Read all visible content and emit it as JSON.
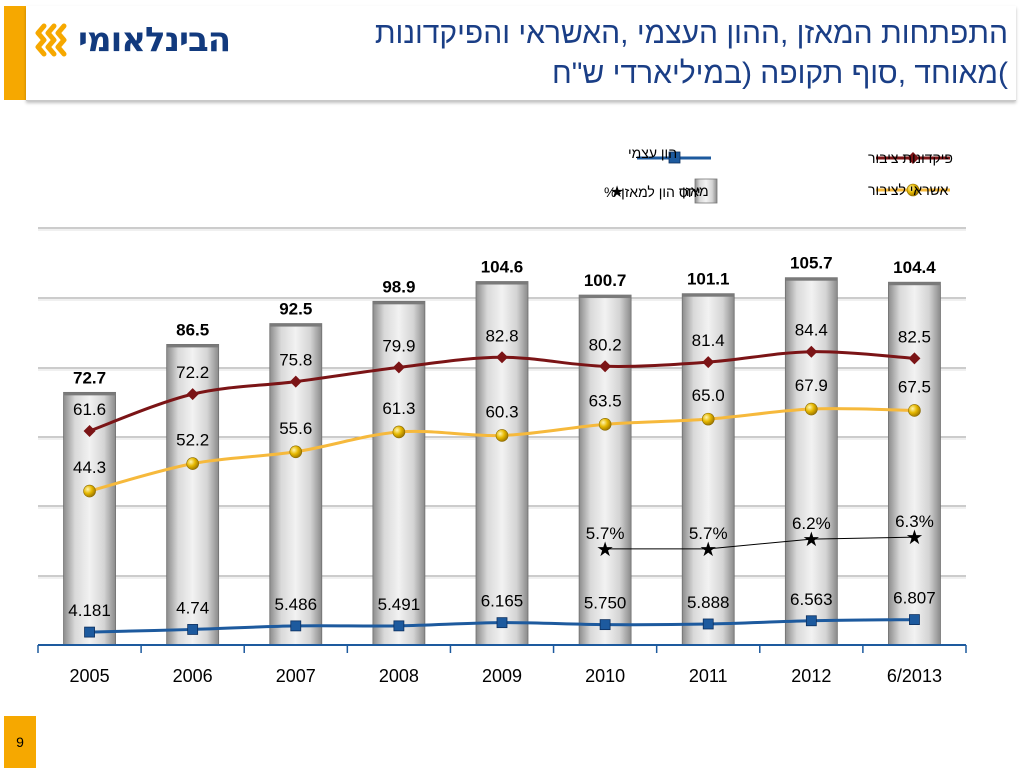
{
  "header": {
    "logo_text": "הבינלאומי",
    "title": "התפתחות המאזן, ההון העצמי, האשראי והפיקדונות מאוחד, סוף תקופה (במיליארדי ש\"ח)",
    "title_line1": "התפתחות המאזן ,ההון העצמי ,האשראי והפיקדונות",
    "title_line2": ")מאוחד ,סוף תקופה (במיליארדי ש\"ח"
  },
  "legend": {
    "deposits": "פיקדונות ציבור",
    "equity": "הון עצמי",
    "credit": "אשראי לציבור",
    "balance": "מאזן",
    "ratio": "יחס הון למאזן-%"
  },
  "page_number": "9",
  "colors": {
    "deposits": "#7b1416",
    "credit": "#f6b93c",
    "equity": "#1d5a9e",
    "ratio": "#000000",
    "bar_fill": "#c9c9c9",
    "accent": "#f6a800",
    "title": "#1a3e86"
  },
  "chart_data": {
    "type": "bar",
    "categories": [
      "2005",
      "2006",
      "2007",
      "2008",
      "2009",
      "2010",
      "2011",
      "2012",
      "6/2013"
    ],
    "ylim": [
      0,
      120
    ],
    "grid": true,
    "legend_position": "top",
    "series": [
      {
        "name": "מאזן",
        "type": "bar",
        "values": [
          72.7,
          86.5,
          92.5,
          98.9,
          104.6,
          100.7,
          101.1,
          105.7,
          104.4
        ],
        "labels": [
          "72.7",
          "86.5",
          "92.5",
          "98.9",
          "104.6",
          "100.7",
          "101.1",
          "105.7",
          "104.4"
        ]
      },
      {
        "name": "פיקדונות ציבור",
        "type": "line",
        "values": [
          61.6,
          72.2,
          75.8,
          79.9,
          82.8,
          80.2,
          81.4,
          84.4,
          82.5
        ],
        "labels": [
          "61.6",
          "72.2",
          "75.8",
          "79.9",
          "82.8",
          "80.2",
          "81.4",
          "84.4",
          "82.5"
        ]
      },
      {
        "name": "אשראי לציבור",
        "type": "line",
        "values": [
          44.3,
          52.2,
          55.6,
          61.3,
          60.3,
          63.5,
          65.0,
          67.9,
          67.5
        ],
        "labels": [
          "44.3",
          "52.2",
          "55.6",
          "61.3",
          "60.3",
          "63.5",
          "65.0",
          "67.9",
          "67.5"
        ]
      },
      {
        "name": "הון עצמי",
        "type": "line",
        "values": [
          4.181,
          4.74,
          5.486,
          5.491,
          6.165,
          5.75,
          5.888,
          6.563,
          6.807
        ],
        "labels": [
          "4.181",
          "4.74",
          "5.486",
          "5.491",
          "6.165",
          "5.750",
          "5.888",
          "6.563",
          "6.807"
        ]
      },
      {
        "name": "יחס הון למאזן-%",
        "type": "scatter",
        "values": [
          null,
          null,
          null,
          null,
          null,
          5.7,
          5.7,
          6.2,
          6.3
        ],
        "labels": [
          "",
          "",
          "",
          "",
          "",
          "5.7%",
          "5.7%",
          "6.2%",
          "6.3%"
        ]
      }
    ]
  }
}
